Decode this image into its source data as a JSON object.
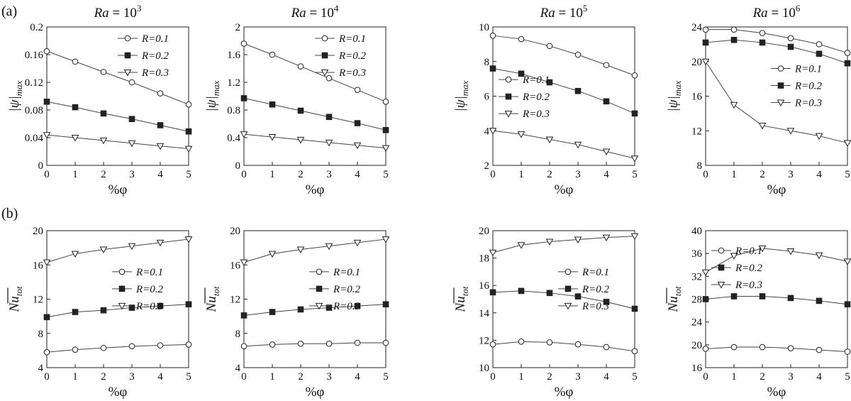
{
  "figure": {
    "row_labels": [
      "(a)",
      "(b)"
    ]
  },
  "chart_data": [
    {
      "type": "line",
      "row": "a",
      "col": 0,
      "title": "Ra = 10^3",
      "title_prefix": "Ra",
      "title_base": "= 10",
      "title_exp": "3",
      "xlabel": "%φ",
      "ylabel": "|ψ|max",
      "ylabel_main": "|ψ|",
      "ylabel_sub": "max",
      "xlim": [
        0,
        5
      ],
      "ylim": [
        0,
        0.2
      ],
      "xticks": [
        0,
        1,
        2,
        3,
        4,
        5
      ],
      "xtick_labels": [
        "0",
        "1",
        "2",
        "3",
        "4",
        "5"
      ],
      "yticks": [
        0,
        0.04,
        0.08,
        0.12,
        0.16,
        0.2
      ],
      "ytick_labels": [
        "0",
        "0.04",
        "0.08",
        "0.12",
        "0.16",
        "0.2"
      ],
      "legend_position": "top-right",
      "x": [
        0,
        1,
        2,
        3,
        4,
        5
      ],
      "series": [
        {
          "name": "R=0.1",
          "marker": "circle",
          "values": [
            0.165,
            0.15,
            0.135,
            0.12,
            0.104,
            0.088
          ]
        },
        {
          "name": "R=0.2",
          "marker": "square",
          "values": [
            0.092,
            0.084,
            0.075,
            0.067,
            0.058,
            0.049
          ]
        },
        {
          "name": "R=0.3",
          "marker": "triangle-down",
          "values": [
            0.044,
            0.04,
            0.036,
            0.032,
            0.028,
            0.024
          ]
        }
      ]
    },
    {
      "type": "line",
      "row": "a",
      "col": 1,
      "title": "Ra = 10^4",
      "title_prefix": "Ra",
      "title_base": "= 10",
      "title_exp": "4",
      "xlabel": "%φ",
      "ylabel": "|ψ|max",
      "ylabel_main": "|ψ|",
      "ylabel_sub": "max",
      "xlim": [
        0,
        5
      ],
      "ylim": [
        0,
        2
      ],
      "xticks": [
        0,
        1,
        2,
        3,
        4,
        5
      ],
      "xtick_labels": [
        "0",
        "1",
        "2",
        "3",
        "4",
        "5"
      ],
      "yticks": [
        0,
        0.4,
        0.8,
        1.2,
        1.6,
        2
      ],
      "ytick_labels": [
        "0",
        "0.4",
        "0.8",
        "1.2",
        "1.6",
        "2"
      ],
      "legend_position": "top-right",
      "x": [
        0,
        1,
        2,
        3,
        4,
        5
      ],
      "series": [
        {
          "name": "R=0.1",
          "marker": "circle",
          "values": [
            1.76,
            1.6,
            1.43,
            1.26,
            1.09,
            0.92
          ]
        },
        {
          "name": "R=0.2",
          "marker": "square",
          "values": [
            0.97,
            0.88,
            0.79,
            0.7,
            0.61,
            0.51
          ]
        },
        {
          "name": "R=0.3",
          "marker": "triangle-down",
          "values": [
            0.45,
            0.41,
            0.37,
            0.33,
            0.29,
            0.25
          ]
        }
      ]
    },
    {
      "type": "line",
      "row": "a",
      "col": 2,
      "title": "Ra = 10^5",
      "title_prefix": "Ra",
      "title_base": "= 10",
      "title_exp": "5",
      "xlabel": "%φ",
      "ylabel": "|ψ|max",
      "ylabel_main": "|ψ|",
      "ylabel_sub": "max",
      "xlim": [
        0,
        5
      ],
      "ylim": [
        2,
        10
      ],
      "xticks": [
        0,
        1,
        2,
        3,
        4,
        5
      ],
      "xtick_labels": [
        "0",
        "1",
        "2",
        "3",
        "4",
        "5"
      ],
      "yticks": [
        2,
        4,
        6,
        8,
        10
      ],
      "ytick_labels": [
        "2",
        "4",
        "6",
        "8",
        "10"
      ],
      "legend_position": "center-left",
      "x": [
        0,
        1,
        2,
        3,
        4,
        5
      ],
      "series": [
        {
          "name": "R=0.1",
          "marker": "circle",
          "values": [
            9.5,
            9.3,
            8.9,
            8.4,
            7.8,
            7.2
          ]
        },
        {
          "name": "R=0.2",
          "marker": "square",
          "values": [
            7.6,
            7.3,
            6.8,
            6.3,
            5.7,
            5.0
          ]
        },
        {
          "name": "R=0.3",
          "marker": "triangle-down",
          "values": [
            4.0,
            3.8,
            3.5,
            3.2,
            2.8,
            2.4
          ]
        }
      ]
    },
    {
      "type": "line",
      "row": "a",
      "col": 3,
      "title": "Ra = 10^6",
      "title_prefix": "Ra",
      "title_base": "= 10",
      "title_exp": "6",
      "xlabel": "%φ",
      "ylabel": "|ψ|max",
      "ylabel_main": "|ψ|",
      "ylabel_sub": "max",
      "xlim": [
        0,
        5
      ],
      "ylim": [
        8,
        24
      ],
      "xticks": [
        0,
        1,
        2,
        3,
        4,
        5
      ],
      "xtick_labels": [
        "0",
        "1",
        "2",
        "3",
        "4",
        "5"
      ],
      "yticks": [
        8,
        12,
        16,
        20,
        24
      ],
      "ytick_labels": [
        "8",
        "12",
        "16",
        "20",
        "24"
      ],
      "legend_position": "center-right",
      "x": [
        0,
        1,
        2,
        3,
        4,
        5
      ],
      "series": [
        {
          "name": "R=0.1",
          "marker": "circle",
          "values": [
            23.7,
            23.7,
            23.3,
            22.7,
            22.0,
            21.0
          ]
        },
        {
          "name": "R=0.2",
          "marker": "square",
          "values": [
            22.2,
            22.5,
            22.2,
            21.7,
            20.9,
            19.8
          ]
        },
        {
          "name": "R=0.3",
          "marker": "triangle-down",
          "values": [
            20.0,
            15.0,
            12.6,
            12.0,
            11.4,
            10.6
          ]
        }
      ]
    },
    {
      "type": "line",
      "row": "b",
      "col": 0,
      "title": "",
      "xlabel": "%φ",
      "ylabel": "Nu_tot",
      "ylabel_main": "Nu",
      "ylabel_sub": "tot",
      "xlim": [
        0,
        5
      ],
      "ylim": [
        4,
        20
      ],
      "xticks": [
        0,
        1,
        2,
        3,
        4,
        5
      ],
      "xtick_labels": [
        "0",
        "1",
        "2",
        "3",
        "4",
        "5"
      ],
      "yticks": [
        4,
        8,
        12,
        16,
        20
      ],
      "ytick_labels": [
        "4",
        "8",
        "12",
        "16",
        "20"
      ],
      "legend_position": "center-right",
      "x": [
        0,
        1,
        2,
        3,
        4,
        5
      ],
      "series": [
        {
          "name": "R=0.1",
          "marker": "circle",
          "values": [
            5.8,
            6.1,
            6.3,
            6.5,
            6.6,
            6.7
          ]
        },
        {
          "name": "R=0.2",
          "marker": "square",
          "values": [
            9.9,
            10.5,
            10.7,
            11.0,
            11.2,
            11.4
          ]
        },
        {
          "name": "R=0.3",
          "marker": "triangle-down",
          "values": [
            16.3,
            17.3,
            17.8,
            18.2,
            18.6,
            19.0
          ]
        }
      ]
    },
    {
      "type": "line",
      "row": "b",
      "col": 1,
      "title": "",
      "xlabel": "%φ",
      "ylabel": "Nu_tot",
      "ylabel_main": "Nu",
      "ylabel_sub": "tot",
      "xlim": [
        0,
        5
      ],
      "ylim": [
        4,
        20
      ],
      "xticks": [
        0,
        1,
        2,
        3,
        4,
        5
      ],
      "xtick_labels": [
        "0",
        "1",
        "2",
        "3",
        "4",
        "5"
      ],
      "yticks": [
        4,
        8,
        12,
        16,
        20
      ],
      "ytick_labels": [
        "4",
        "8",
        "12",
        "16",
        "20"
      ],
      "legend_position": "center-right",
      "x": [
        0,
        1,
        2,
        3,
        4,
        5
      ],
      "series": [
        {
          "name": "R=0.1",
          "marker": "circle",
          "values": [
            6.5,
            6.7,
            6.8,
            6.8,
            6.9,
            6.9
          ]
        },
        {
          "name": "R=0.2",
          "marker": "square",
          "values": [
            10.1,
            10.5,
            10.8,
            11.0,
            11.2,
            11.4
          ]
        },
        {
          "name": "R=0.3",
          "marker": "triangle-down",
          "values": [
            16.3,
            17.3,
            17.8,
            18.2,
            18.6,
            19.0
          ]
        }
      ]
    },
    {
      "type": "line",
      "row": "b",
      "col": 2,
      "title": "",
      "xlabel": "%φ",
      "ylabel": "Nu_tot",
      "ylabel_main": "Nu",
      "ylabel_sub": "tot",
      "xlim": [
        0,
        5
      ],
      "ylim": [
        10,
        20
      ],
      "xticks": [
        0,
        1,
        2,
        3,
        4,
        5
      ],
      "xtick_labels": [
        "0",
        "1",
        "2",
        "3",
        "4",
        "5"
      ],
      "yticks": [
        10,
        12,
        14,
        16,
        18,
        20
      ],
      "ytick_labels": [
        "10",
        "12",
        "14",
        "16",
        "18",
        "20"
      ],
      "legend_position": "center-right",
      "x": [
        0,
        1,
        2,
        3,
        4,
        5
      ],
      "series": [
        {
          "name": "R=0.1",
          "marker": "circle",
          "values": [
            11.7,
            11.9,
            11.85,
            11.7,
            11.5,
            11.2
          ]
        },
        {
          "name": "R=0.2",
          "marker": "square",
          "values": [
            15.5,
            15.6,
            15.45,
            15.2,
            14.8,
            14.3
          ]
        },
        {
          "name": "R=0.3",
          "marker": "triangle-down",
          "values": [
            18.4,
            18.95,
            19.2,
            19.35,
            19.5,
            19.6
          ]
        }
      ]
    },
    {
      "type": "line",
      "row": "b",
      "col": 3,
      "title": "",
      "xlabel": "%φ",
      "ylabel": "Nu_tot",
      "ylabel_main": "Nu",
      "ylabel_sub": "tot",
      "xlim": [
        0,
        5
      ],
      "ylim": [
        16,
        40
      ],
      "xticks": [
        0,
        1,
        2,
        3,
        4,
        5
      ],
      "xtick_labels": [
        "0",
        "1",
        "2",
        "3",
        "4",
        "5"
      ],
      "yticks": [
        16,
        20,
        24,
        28,
        32,
        36,
        40
      ],
      "ytick_labels": [
        "16",
        "20",
        "24",
        "28",
        "32",
        "36",
        "40"
      ],
      "legend_position": "center-left",
      "x": [
        0,
        1,
        2,
        3,
        4,
        5
      ],
      "series": [
        {
          "name": "R=0.1",
          "marker": "circle",
          "values": [
            19.3,
            19.6,
            19.6,
            19.4,
            19.1,
            18.8
          ]
        },
        {
          "name": "R=0.2",
          "marker": "square",
          "values": [
            28.0,
            28.5,
            28.5,
            28.2,
            27.7,
            27.1
          ]
        },
        {
          "name": "R=0.3",
          "marker": "triangle-down",
          "values": [
            32.7,
            35.6,
            36.9,
            36.4,
            35.7,
            34.6
          ]
        }
      ]
    }
  ]
}
